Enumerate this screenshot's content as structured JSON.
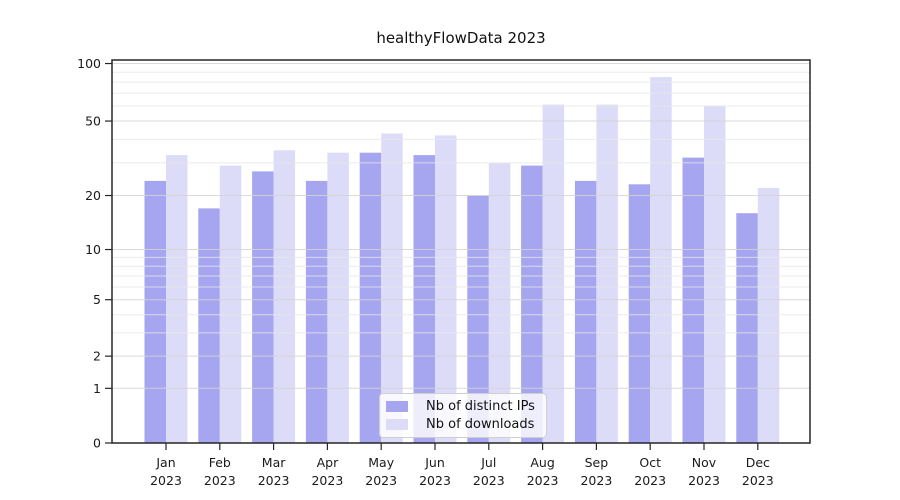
{
  "chart_data": {
    "type": "bar",
    "title": "healthyFlowData 2023",
    "categories": [
      "Jan 2023",
      "Feb 2023",
      "Mar 2023",
      "Apr 2023",
      "May 2023",
      "Jun 2023",
      "Jul 2023",
      "Aug 2023",
      "Sep 2023",
      "Oct 2023",
      "Nov 2023",
      "Dec 2023"
    ],
    "series": [
      {
        "name": "Nb of distinct IPs",
        "color": "#a5a5f0",
        "values": [
          24,
          17,
          27,
          24,
          34,
          33,
          20,
          29,
          24,
          23,
          32,
          16
        ]
      },
      {
        "name": "Nb of downloads",
        "color": "#dcdcf8",
        "values": [
          33,
          29,
          35,
          34,
          43,
          42,
          30,
          61,
          61,
          85,
          60,
          22
        ]
      }
    ],
    "xlabel": "",
    "ylabel": "",
    "yscale": "log-like",
    "y_ticks": [
      0,
      1,
      2,
      5,
      10,
      20,
      50,
      100
    ],
    "y_minor_gridlines": [
      3,
      4,
      6,
      7,
      8,
      9,
      30,
      40,
      60,
      70,
      80,
      90
    ],
    "ylim": [
      0,
      105
    ],
    "grid": true,
    "legend_position": "lower center",
    "colors": {
      "spine": "#262626",
      "major_grid": "#d4d4d4",
      "minor_grid": "#e7e7e7",
      "tick_label": "#1a1a1a"
    }
  }
}
